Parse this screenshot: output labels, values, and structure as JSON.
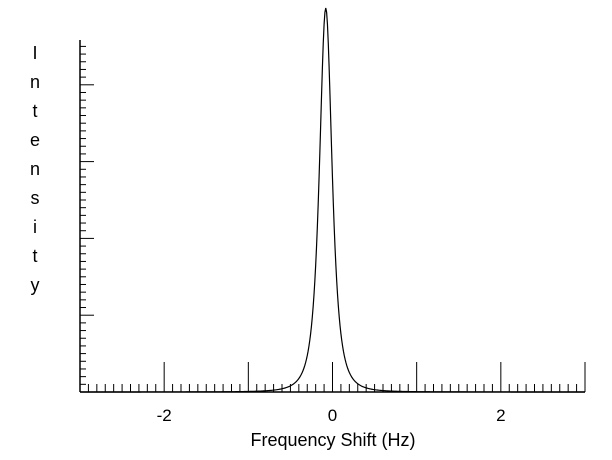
{
  "chart_data": {
    "type": "line",
    "title": "",
    "xlabel": "Frequency Shift (Hz)",
    "ylabel": "Intensity",
    "xlim": [
      -3,
      3
    ],
    "ylim": [
      0,
      1
    ],
    "x_ticks": [
      "-2",
      "0",
      "2"
    ],
    "grid": false,
    "legend": "none",
    "line_color": "#000000",
    "peak": {
      "center": -0.08,
      "half_width": 0.12,
      "height": 1.0
    },
    "series": [
      {
        "x": [
          -3.0,
          -1.0,
          -0.6,
          -0.45,
          -0.35,
          -0.28,
          -0.22,
          -0.18,
          -0.14,
          -0.11,
          -0.09,
          -0.08,
          -0.07,
          -0.05,
          -0.02,
          0.02,
          0.06,
          0.12,
          0.19,
          0.29,
          0.4,
          0.6,
          1.0,
          3.0
        ],
        "y": [
          0.0,
          0.0,
          0.005,
          0.02,
          0.06,
          0.14,
          0.28,
          0.43,
          0.66,
          0.86,
          0.97,
          1.0,
          0.97,
          0.86,
          0.66,
          0.43,
          0.28,
          0.14,
          0.06,
          0.02,
          0.005,
          0.001,
          0.0,
          0.0
        ]
      }
    ]
  }
}
